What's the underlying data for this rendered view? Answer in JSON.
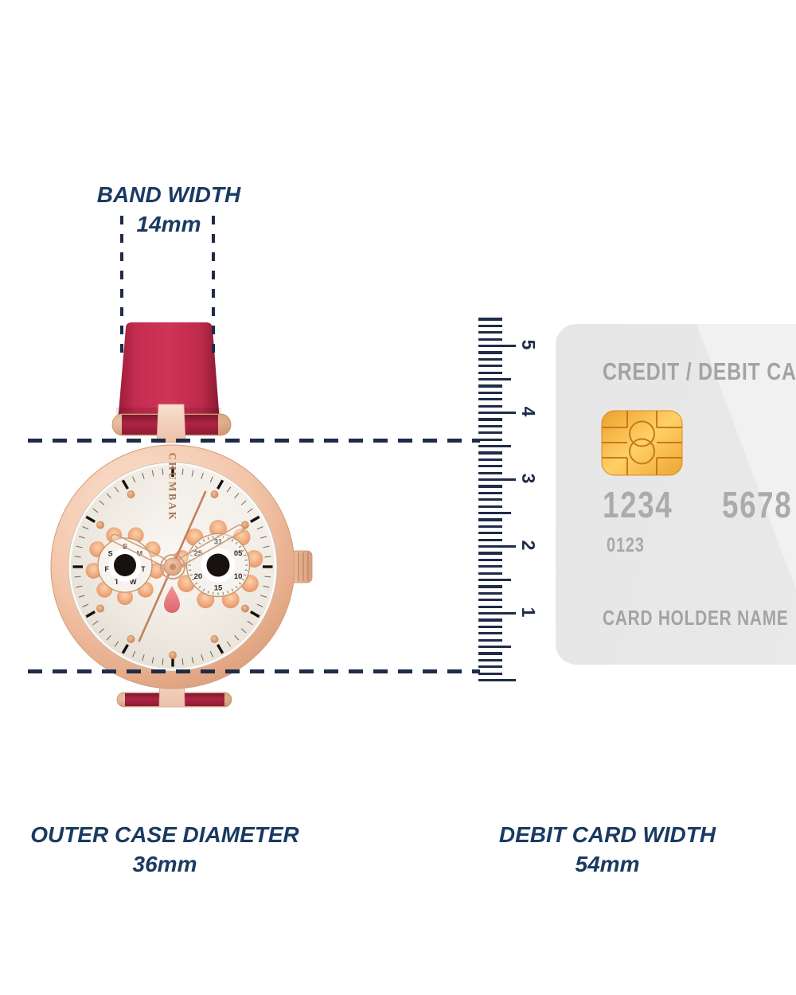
{
  "measurements": {
    "band_width": {
      "title": "BAND WIDTH",
      "value": "14mm"
    },
    "outer_case_diameter": {
      "title": "OUTER CASE DIAMETER",
      "value": "36mm"
    },
    "debit_card_width": {
      "title": "DEBIT CARD WIDTH",
      "value": "54mm"
    }
  },
  "ruler": {
    "unit_numbers": [
      "1",
      "2",
      "3",
      "4",
      "5"
    ]
  },
  "watch": {
    "brand": "CHUMBAK",
    "day_subdial_letters": [
      "S",
      "M",
      "T",
      "W",
      "T",
      "F",
      "S"
    ],
    "date_subdial_numbers": [
      "31",
      "05",
      "10",
      "15",
      "20",
      "25"
    ]
  },
  "card": {
    "title": "CREDIT / DEBIT CARD",
    "number_group_1": "1234",
    "number_group_2": "5678",
    "issue_number": "0123",
    "holder_label": "CARD HOLDER NAME"
  },
  "colors": {
    "navy_text": "#1a3a62",
    "navy_line": "#1e2c49",
    "band_red": "#c42c50",
    "rose_gold": "#eebc9e",
    "dial_silver": "#f0ece5",
    "chip_gold": "#f5b33c",
    "card_gray": "#e9e9e9",
    "card_text_gray": "#a6a6a6",
    "beak_pink": "#ea7d80"
  }
}
